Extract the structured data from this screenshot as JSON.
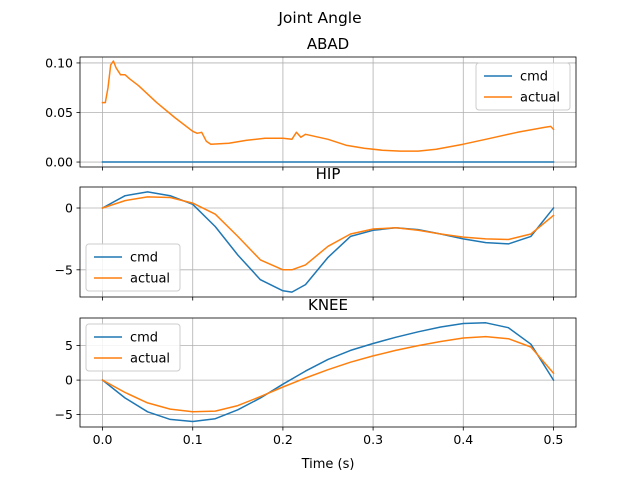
{
  "chart_data": {
    "type": "line",
    "title": "Joint Angle",
    "xlabel": "Time (s)",
    "xlim": [
      -0.025,
      0.525
    ],
    "xticks": [
      0.0,
      0.1,
      0.2,
      0.3,
      0.4,
      0.5
    ],
    "xtick_labels": [
      "0.0",
      "0.1",
      "0.2",
      "0.3",
      "0.4",
      "0.5"
    ],
    "grid": true,
    "colors": {
      "cmd": "#1f77b4",
      "actual": "#ff7f0e"
    },
    "subplots": [
      {
        "title": "ABAD",
        "ylim": [
          -0.005,
          0.106
        ],
        "yticks": [
          0.0,
          0.05,
          0.1
        ],
        "ytick_labels": [
          "0.00",
          "0.05",
          "0.10"
        ],
        "legend": "top-right",
        "series": [
          {
            "name": "cmd",
            "x": [
              0.0,
              0.5
            ],
            "y": [
              0.0,
              0.0
            ]
          },
          {
            "name": "actual",
            "x": [
              0.0,
              0.003,
              0.006,
              0.009,
              0.012,
              0.015,
              0.02,
              0.025,
              0.03,
              0.04,
              0.06,
              0.08,
              0.1,
              0.105,
              0.11,
              0.115,
              0.12,
              0.14,
              0.16,
              0.18,
              0.2,
              0.21,
              0.215,
              0.22,
              0.225,
              0.23,
              0.25,
              0.27,
              0.29,
              0.31,
              0.33,
              0.35,
              0.37,
              0.4,
              0.43,
              0.46,
              0.49,
              0.497,
              0.5
            ],
            "y": [
              0.06,
              0.06,
              0.075,
              0.098,
              0.102,
              0.095,
              0.088,
              0.088,
              0.084,
              0.077,
              0.06,
              0.045,
              0.031,
              0.029,
              0.03,
              0.021,
              0.018,
              0.019,
              0.022,
              0.024,
              0.024,
              0.023,
              0.03,
              0.025,
              0.028,
              0.027,
              0.023,
              0.017,
              0.014,
              0.012,
              0.011,
              0.011,
              0.013,
              0.018,
              0.024,
              0.03,
              0.035,
              0.036,
              0.033
            ]
          }
        ]
      },
      {
        "title": "HIP",
        "ylim": [
          -7.2,
          1.7
        ],
        "yticks": [
          0,
          -5
        ],
        "ytick_labels": [
          "0",
          "−5"
        ],
        "legend": "lower-left",
        "series": [
          {
            "name": "cmd",
            "x": [
              0.0,
              0.025,
              0.05,
              0.075,
              0.1,
              0.125,
              0.15,
              0.175,
              0.2,
              0.21,
              0.225,
              0.25,
              0.275,
              0.3,
              0.325,
              0.35,
              0.375,
              0.4,
              0.425,
              0.45,
              0.475,
              0.5
            ],
            "y": [
              0.0,
              1.0,
              1.3,
              1.0,
              0.3,
              -1.5,
              -3.8,
              -5.8,
              -6.7,
              -6.8,
              -6.2,
              -4.0,
              -2.3,
              -1.8,
              -1.6,
              -1.75,
              -2.1,
              -2.5,
              -2.8,
              -2.9,
              -2.3,
              0.0
            ]
          },
          {
            "name": "actual",
            "x": [
              0.0,
              0.025,
              0.05,
              0.075,
              0.1,
              0.125,
              0.15,
              0.175,
              0.2,
              0.21,
              0.225,
              0.25,
              0.275,
              0.3,
              0.325,
              0.35,
              0.375,
              0.4,
              0.425,
              0.45,
              0.475,
              0.5
            ],
            "y": [
              0.0,
              0.6,
              0.9,
              0.85,
              0.4,
              -0.5,
              -2.3,
              -4.2,
              -5.0,
              -5.0,
              -4.6,
              -3.1,
              -2.1,
              -1.7,
              -1.6,
              -1.8,
              -2.1,
              -2.35,
              -2.5,
              -2.55,
              -2.1,
              -0.6
            ]
          }
        ]
      },
      {
        "title": "KNEE",
        "ylim": [
          -6.8,
          9.0
        ],
        "yticks": [
          5,
          0,
          -5
        ],
        "ytick_labels": [
          "5",
          "0",
          "−5"
        ],
        "legend": "top-left",
        "series": [
          {
            "name": "cmd",
            "x": [
              0.0,
              0.025,
              0.05,
              0.075,
              0.1,
              0.125,
              0.15,
              0.175,
              0.2,
              0.225,
              0.25,
              0.275,
              0.3,
              0.325,
              0.35,
              0.375,
              0.4,
              0.425,
              0.45,
              0.475,
              0.5
            ],
            "y": [
              0.0,
              -2.6,
              -4.6,
              -5.7,
              -6.0,
              -5.6,
              -4.3,
              -2.6,
              -0.6,
              1.3,
              3.0,
              4.3,
              5.3,
              6.2,
              7.0,
              7.7,
              8.2,
              8.3,
              7.6,
              5.2,
              0.0
            ]
          },
          {
            "name": "actual",
            "x": [
              0.0,
              0.025,
              0.05,
              0.075,
              0.1,
              0.125,
              0.15,
              0.175,
              0.2,
              0.225,
              0.25,
              0.275,
              0.3,
              0.325,
              0.35,
              0.375,
              0.4,
              0.425,
              0.45,
              0.475,
              0.5
            ],
            "y": [
              0.0,
              -1.8,
              -3.3,
              -4.2,
              -4.6,
              -4.5,
              -3.7,
              -2.4,
              -1.0,
              0.3,
              1.5,
              2.6,
              3.5,
              4.3,
              5.0,
              5.6,
              6.1,
              6.3,
              6.0,
              4.8,
              1.0
            ]
          }
        ]
      }
    ]
  }
}
